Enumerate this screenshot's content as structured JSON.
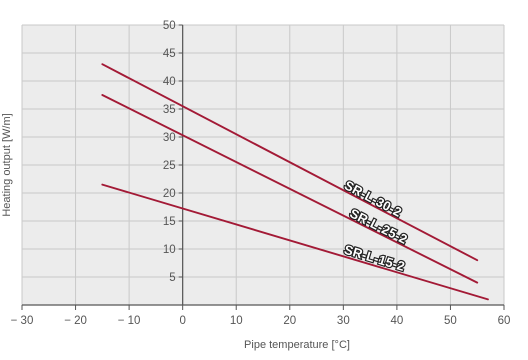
{
  "chart_data": {
    "type": "line",
    "title": "",
    "xlabel": "Pipe temperature [°C]",
    "ylabel": "Heating output [W/m]",
    "xlim": [
      -30,
      60
    ],
    "ylim": [
      0,
      50
    ],
    "x_ticks": [
      -30,
      -20,
      -10,
      0,
      10,
      20,
      30,
      40,
      50,
      60
    ],
    "x_tick_labels": [
      "− 30",
      "− 20",
      "− 10",
      "0",
      "10",
      "20",
      "30",
      "40",
      "50",
      "60"
    ],
    "y_ticks": [
      5,
      10,
      15,
      20,
      25,
      30,
      35,
      40,
      45,
      50
    ],
    "grid": true,
    "legend": "none",
    "series": [
      {
        "name": "SR-L-30-2",
        "x": [
          -15,
          55
        ],
        "y": [
          43,
          8
        ],
        "color": "#a31a36"
      },
      {
        "name": "SR-L-25-2",
        "x": [
          -15,
          55
        ],
        "y": [
          37.5,
          4
        ],
        "color": "#a31a36"
      },
      {
        "name": "SR-L-15-2",
        "x": [
          -15,
          57
        ],
        "y": [
          21.5,
          1
        ],
        "color": "#a31a36"
      }
    ],
    "colors": {
      "background": "#ffffff",
      "plot_background": "#ececec",
      "grid": "#c9c9c9",
      "axis": "#555555",
      "line": "#a31a36"
    }
  }
}
